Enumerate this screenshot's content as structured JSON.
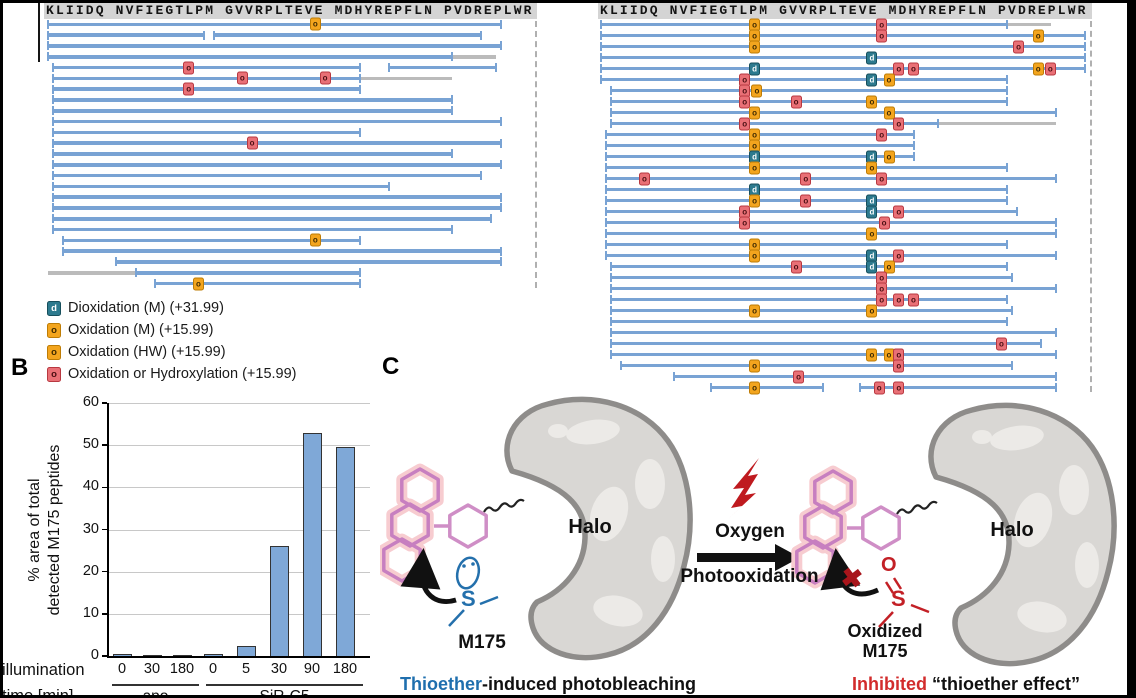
{
  "figure": {
    "panel_a": {
      "sequence": "KLIIDQ NVFIEGTLPM GVVRPLTEVE MDHYREPFLN PVDREPLWR",
      "marker_types": {
        "o": {
          "name": "oxidation",
          "symbol": "o",
          "fill": "#F3A51E",
          "border": "#BE7C05",
          "text_color": "#3F2A00"
        },
        "r": {
          "name": "oxidation-or-hydroxylation",
          "symbol": "o",
          "fill": "#E97076",
          "border": "#B83840",
          "text_color": "#4A0E12"
        },
        "d": {
          "name": "dioxidation",
          "symbol": "d",
          "fill": "#2D7A8E",
          "border": "#174F5C",
          "text_color": "#FFFFFF"
        }
      },
      "left_rows": [
        {
          "segs": [
            [
              0,
              93
            ]
          ],
          "marks": [
            [
              55,
              "o"
            ]
          ]
        },
        {
          "segs": [
            [
              0,
              32
            ],
            [
              34,
              89
            ]
          ]
        },
        {
          "segs": [
            [
              0,
              93
            ]
          ]
        },
        {
          "segs": [
            [
              0,
              83
            ]
          ],
          "gray": [
            [
              83,
              92
            ]
          ]
        },
        {
          "segs": [
            [
              1,
              64
            ],
            [
              70,
              92
            ]
          ],
          "marks": [
            [
              29,
              "r"
            ]
          ]
        },
        {
          "segs": [
            [
              1,
              64
            ]
          ],
          "gray": [
            [
              64,
              83
            ]
          ],
          "marks": [
            [
              40,
              "r"
            ],
            [
              57,
              "r"
            ]
          ]
        },
        {
          "segs": [
            [
              1,
              64
            ]
          ],
          "marks": [
            [
              29,
              "r"
            ]
          ]
        },
        {
          "segs": [
            [
              1,
              83
            ]
          ]
        },
        {
          "segs": [
            [
              1,
              83
            ]
          ]
        },
        {
          "segs": [
            [
              1,
              93
            ]
          ]
        },
        {
          "segs": [
            [
              1,
              64
            ]
          ]
        },
        {
          "segs": [
            [
              1,
              93
            ]
          ],
          "marks": [
            [
              42,
              "r"
            ]
          ]
        },
        {
          "segs": [
            [
              1,
              83
            ]
          ]
        },
        {
          "segs": [
            [
              1,
              93
            ]
          ]
        },
        {
          "segs": [
            [
              1,
              89
            ]
          ]
        },
        {
          "segs": [
            [
              1,
              70
            ]
          ]
        },
        {
          "segs": [
            [
              1,
              93
            ]
          ]
        },
        {
          "segs": [
            [
              1,
              93
            ]
          ]
        },
        {
          "segs": [
            [
              1,
              91
            ]
          ]
        },
        {
          "segs": [
            [
              1,
              83
            ]
          ]
        },
        {
          "segs": [
            [
              3,
              64
            ]
          ],
          "marks": [
            [
              55,
              "o"
            ]
          ]
        },
        {
          "segs": [
            [
              3,
              93
            ]
          ]
        },
        {
          "segs": [
            [
              14,
              93
            ]
          ]
        },
        {
          "segs": [
            [
              18,
              64
            ]
          ],
          "gray": [
            [
              0,
              18
            ]
          ]
        },
        {
          "segs": [
            [
              22,
              64
            ]
          ],
          "marks": [
            [
              31,
              "o"
            ]
          ]
        }
      ],
      "right_rows": [
        {
          "segs": [
            [
              0,
              83
            ]
          ],
          "gray": [
            [
              83,
              92
            ]
          ],
          "marks": [
            [
              31.5,
              "o"
            ],
            [
              57.5,
              "r"
            ]
          ]
        },
        {
          "segs": [
            [
              0,
              99
            ]
          ],
          "marks": [
            [
              31.5,
              "o"
            ],
            [
              57.5,
              "r"
            ],
            [
              89.5,
              "o"
            ]
          ]
        },
        {
          "segs": [
            [
              0,
              99
            ]
          ],
          "marks": [
            [
              31.5,
              "o"
            ],
            [
              85.5,
              "r"
            ]
          ]
        },
        {
          "segs": [
            [
              0,
              99
            ]
          ],
          "marks": [
            [
              55.5,
              "d"
            ]
          ]
        },
        {
          "segs": [
            [
              0,
              99
            ]
          ],
          "marks": [
            [
              31.5,
              "d"
            ],
            [
              61,
              "r"
            ],
            [
              64,
              "r"
            ],
            [
              89.5,
              "o"
            ],
            [
              92,
              "r"
            ]
          ]
        },
        {
          "segs": [
            [
              0,
              83
            ]
          ],
          "marks": [
            [
              29.5,
              "r"
            ],
            [
              55.5,
              "d"
            ],
            [
              59,
              "o"
            ]
          ]
        },
        {
          "segs": [
            [
              2,
              83
            ]
          ],
          "marks": [
            [
              29.5,
              "r"
            ],
            [
              32,
              "o"
            ]
          ]
        },
        {
          "segs": [
            [
              2,
              83
            ]
          ],
          "marks": [
            [
              29.5,
              "r"
            ],
            [
              40,
              "r"
            ],
            [
              55.5,
              "o"
            ]
          ]
        },
        {
          "segs": [
            [
              2,
              93
            ]
          ],
          "marks": [
            [
              31.5,
              "o"
            ],
            [
              59,
              "o"
            ]
          ]
        },
        {
          "segs": [
            [
              2,
              69
            ]
          ],
          "gray": [
            [
              69,
              93
            ]
          ],
          "marks": [
            [
              29.5,
              "r"
            ],
            [
              61,
              "r"
            ]
          ]
        },
        {
          "segs": [
            [
              1,
              64
            ]
          ],
          "marks": [
            [
              31.5,
              "o"
            ],
            [
              57.5,
              "r"
            ]
          ]
        },
        {
          "segs": [
            [
              1,
              64
            ]
          ],
          "marks": [
            [
              31.5,
              "o"
            ]
          ]
        },
        {
          "segs": [
            [
              1,
              64
            ]
          ],
          "marks": [
            [
              31.5,
              "d"
            ],
            [
              55.5,
              "d"
            ],
            [
              59,
              "o"
            ]
          ]
        },
        {
          "segs": [
            [
              1,
              83
            ]
          ],
          "marks": [
            [
              31.5,
              "o"
            ],
            [
              55.5,
              "o"
            ]
          ]
        },
        {
          "segs": [
            [
              1,
              93
            ]
          ],
          "marks": [
            [
              9,
              "r"
            ],
            [
              42,
              "r"
            ],
            [
              57.5,
              "r"
            ]
          ]
        },
        {
          "segs": [
            [
              1,
              83
            ]
          ],
          "marks": [
            [
              31.5,
              "d"
            ]
          ]
        },
        {
          "segs": [
            [
              1,
              83
            ]
          ],
          "marks": [
            [
              31.5,
              "o"
            ],
            [
              42,
              "r"
            ],
            [
              55.5,
              "d"
            ]
          ]
        },
        {
          "segs": [
            [
              1,
              85
            ]
          ],
          "marks": [
            [
              29.5,
              "r"
            ],
            [
              55.5,
              "d"
            ],
            [
              61,
              "r"
            ]
          ]
        },
        {
          "segs": [
            [
              1,
              93
            ]
          ],
          "marks": [
            [
              29.5,
              "r"
            ],
            [
              58,
              "r"
            ]
          ]
        },
        {
          "segs": [
            [
              1,
              93
            ]
          ],
          "marks": [
            [
              55.5,
              "o"
            ]
          ]
        },
        {
          "segs": [
            [
              1,
              83
            ]
          ],
          "marks": [
            [
              31.5,
              "o"
            ]
          ]
        },
        {
          "segs": [
            [
              1,
              93
            ]
          ],
          "marks": [
            [
              31.5,
              "o"
            ],
            [
              55.5,
              "d"
            ],
            [
              61,
              "r"
            ]
          ]
        },
        {
          "segs": [
            [
              2,
              83
            ]
          ],
          "marks": [
            [
              40,
              "r"
            ],
            [
              55.5,
              "d"
            ],
            [
              59,
              "o"
            ]
          ]
        },
        {
          "segs": [
            [
              2,
              84
            ]
          ],
          "marks": [
            [
              57.5,
              "r"
            ]
          ]
        },
        {
          "segs": [
            [
              2,
              93
            ]
          ],
          "marks": [
            [
              57.5,
              "r"
            ]
          ]
        },
        {
          "segs": [
            [
              2,
              83
            ]
          ],
          "marks": [
            [
              57.5,
              "r"
            ],
            [
              61,
              "r"
            ],
            [
              64,
              "r"
            ]
          ]
        },
        {
          "segs": [
            [
              2,
              84
            ]
          ],
          "marks": [
            [
              31.5,
              "o"
            ],
            [
              55.5,
              "o"
            ]
          ]
        },
        {
          "segs": [
            [
              2,
              83
            ]
          ]
        },
        {
          "segs": [
            [
              2,
              93
            ]
          ]
        },
        {
          "segs": [
            [
              2,
              90
            ]
          ],
          "marks": [
            [
              82,
              "r"
            ]
          ]
        },
        {
          "segs": [
            [
              2,
              93
            ]
          ],
          "marks": [
            [
              55.5,
              "o"
            ],
            [
              59,
              "o"
            ],
            [
              61,
              "r"
            ]
          ]
        },
        {
          "segs": [
            [
              4,
              84
            ]
          ],
          "marks": [
            [
              31.5,
              "o"
            ],
            [
              61,
              "r"
            ]
          ]
        },
        {
          "segs": [
            [
              15,
              93
            ]
          ],
          "marks": [
            [
              40.5,
              "r"
            ]
          ]
        },
        {
          "segs": [
            [
              22.5,
              45.5
            ],
            [
              53,
              93
            ]
          ],
          "marks": [
            [
              31.5,
              "o"
            ],
            [
              57,
              "r"
            ],
            [
              61,
              "r"
            ]
          ]
        }
      ]
    },
    "legend": {
      "items": [
        {
          "symbol": "d",
          "label": "Dioxidation (M) (+31.99)",
          "fill": "#2D7A8E",
          "border": "#174F5C",
          "text_color": "#FFFFFF"
        },
        {
          "symbol": "o",
          "label": "Oxidation (M) (+15.99)",
          "fill": "#F3A51E",
          "border": "#BE7C05",
          "text_color": "#3F2A00"
        },
        {
          "symbol": "o",
          "label": "Oxidation (HW) (+15.99)",
          "fill": "#F3A51E",
          "border": "#BE7C05",
          "text_color": "#3F2A00"
        },
        {
          "symbol": "o",
          "label": "Oxidation or Hydroxylation (+15.99)",
          "fill": "#E97076",
          "border": "#B83840",
          "text_color": "#4A0E12"
        }
      ]
    },
    "panel_b": {
      "label": "B",
      "chart_data": {
        "type": "bar",
        "ylabel_line1": "% area of total",
        "ylabel_line2": "detected M175 peptides",
        "xlabel_line1": "illumination",
        "xlabel_line2": "time [min]",
        "ylim": [
          0,
          60
        ],
        "yticks": [
          0,
          10,
          20,
          30,
          40,
          50,
          60
        ],
        "grid": true,
        "bar_color": "#7FA8D7",
        "groups": [
          {
            "name": "apo",
            "categories": [
              "0",
              "30",
              "180"
            ],
            "values": [
              0.4,
              0.3,
              0.25
            ]
          },
          {
            "name": "SiR-C5",
            "categories": [
              "0",
              "5",
              "30",
              "90",
              "180"
            ],
            "values": [
              0.5,
              2.3,
              26,
              53,
              49.5
            ]
          }
        ]
      }
    },
    "panel_c": {
      "label": "C",
      "left": {
        "protein_label": "Halo",
        "sulfur": "S",
        "residue_label": "M175",
        "caption_highlight": "Thioether",
        "caption_rest": "-induced photobleaching",
        "highlight_color": "#1F6FAE"
      },
      "middle": {
        "top_label": "Oxygen",
        "bottom_label": "Photooxidation"
      },
      "right": {
        "protein_label": "Halo",
        "oxygen": "O",
        "sulfur": "S",
        "cross_icon": "✖",
        "residue_line1": "Oxidized",
        "residue_line2": "M175",
        "caption_highlight": "Inhibited",
        "caption_rest": " “thioether effect”",
        "highlight_color": "#D22C2C"
      }
    },
    "colors": {
      "peptide_bar": "#79A3D4",
      "gray_bar": "#BBBBBB",
      "bolt_red": "#BF1A1F",
      "dye_pink": "#C77FC0",
      "dye_glow": "#F7CCD0",
      "protein_gray": "#D9D7D4",
      "protein_outline": "#8E8C8A"
    }
  }
}
